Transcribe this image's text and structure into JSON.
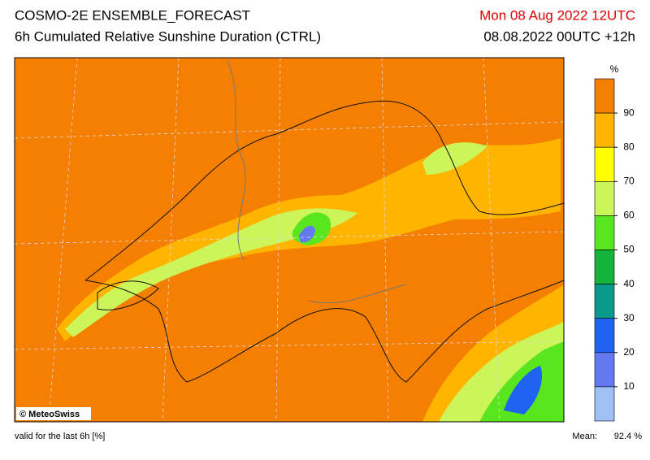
{
  "header": {
    "title": "COSMO-2E ENSEMBLE_FORECAST",
    "subtitle": "6h Cumulated Relative Sunshine Duration (CTRL)",
    "valid_time": "Mon 08 Aug 2022 12UTC",
    "run": "08.08.2022 00UTC +12h"
  },
  "map": {
    "credit": "© MeteoSwiss"
  },
  "colorbar": {
    "unit": "%",
    "labels": [
      90,
      80,
      70,
      60,
      50,
      40,
      30,
      20,
      10
    ],
    "colors": [
      "#f57f00",
      "#ffb400",
      "#ffff00",
      "#ccf55a",
      "#5ae61e",
      "#14b43c",
      "#0a9a8c",
      "#1e64f0",
      "#6478f0",
      "#a0bff5"
    ]
  },
  "footer": {
    "note": "valid for the last 6h [%]",
    "mean_label": "Mean:",
    "mean_value": "92.4 %"
  }
}
